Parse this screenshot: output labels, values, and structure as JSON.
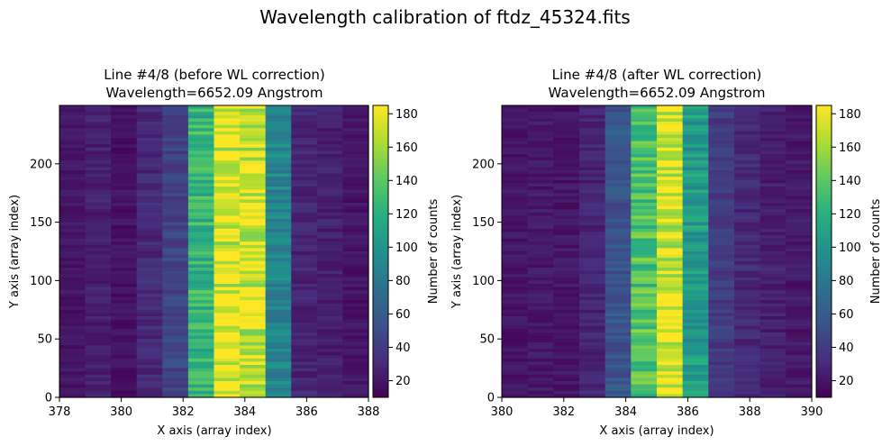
{
  "suptitle": "Wavelength calibration of ftdz_45324.fits",
  "colormap": "viridis",
  "chart_data": [
    {
      "type": "heatmap",
      "title_line1": "Line #4/8 (before WL correction)",
      "title_line2": "Wavelength=6652.09 Angstrom",
      "xlabel": "X axis (array index)",
      "ylabel": "Y axis (array index)",
      "xlim": [
        378,
        388
      ],
      "ylim": [
        0,
        250
      ],
      "xticks": [
        "378",
        "380",
        "382",
        "384",
        "386",
        "388"
      ],
      "yticks": [
        "0",
        "50",
        "100",
        "150",
        "200"
      ],
      "column_mean_counts": [
        20,
        25,
        18,
        30,
        45,
        125,
        175,
        172,
        90,
        28,
        25,
        20
      ],
      "colorbar": {
        "label": "Number of counts",
        "min": 10,
        "max": 185,
        "ticks": [
          "20",
          "40",
          "60",
          "80",
          "100",
          "120",
          "140",
          "160",
          "180"
        ]
      }
    },
    {
      "type": "heatmap",
      "title_line1": "Line #4/8 (after WL correction)",
      "title_line2": "Wavelength=6652.09 Angstrom",
      "xlabel": "X axis (array index)",
      "ylabel": "Y axis (array index)",
      "xlim": [
        380,
        390
      ],
      "ylim": [
        0,
        250
      ],
      "xticks": [
        "380",
        "382",
        "384",
        "386",
        "388",
        "390"
      ],
      "yticks": [
        "0",
        "50",
        "100",
        "150",
        "200"
      ],
      "column_mean_counts": [
        20,
        22,
        20,
        28,
        55,
        135,
        175,
        105,
        40,
        30,
        25,
        22
      ],
      "colorbar": {
        "label": "Number of counts",
        "min": 10,
        "max": 185,
        "ticks": [
          "20",
          "40",
          "60",
          "80",
          "100",
          "120",
          "140",
          "160",
          "180"
        ]
      }
    }
  ]
}
